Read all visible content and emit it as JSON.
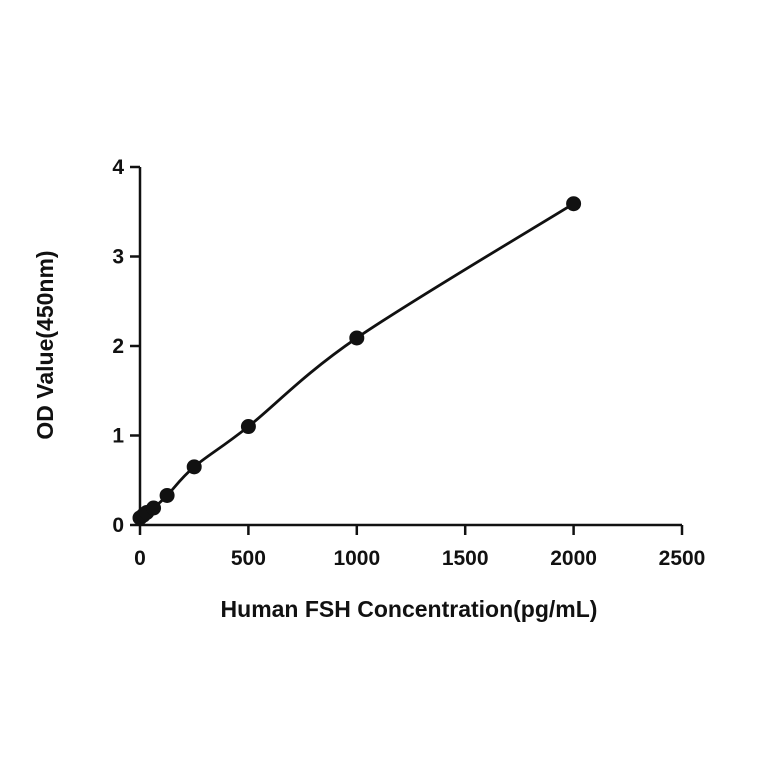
{
  "chart_data": {
    "type": "scatter",
    "title": "",
    "xlabel": "Human FSH Concentration(pg/mL)",
    "ylabel": "OD Value(450nm)",
    "xlim": [
      0,
      2500
    ],
    "ylim": [
      0,
      4
    ],
    "x_ticks": [
      "0",
      "500",
      "1000",
      "1500",
      "2000",
      "2500"
    ],
    "y_ticks": [
      "0",
      "1",
      "2",
      "3",
      "4"
    ],
    "grid": false,
    "legend": "none",
    "colors": {
      "series": "#111111",
      "axes": "#111111"
    },
    "series": [
      {
        "x": [
          0,
          15.6,
          31.25,
          62.5,
          125,
          250,
          500,
          1000,
          2000
        ],
        "y": [
          0.08,
          0.11,
          0.14,
          0.19,
          0.33,
          0.65,
          1.1,
          2.09,
          3.59
        ],
        "fit": "smooth-curve"
      }
    ]
  }
}
